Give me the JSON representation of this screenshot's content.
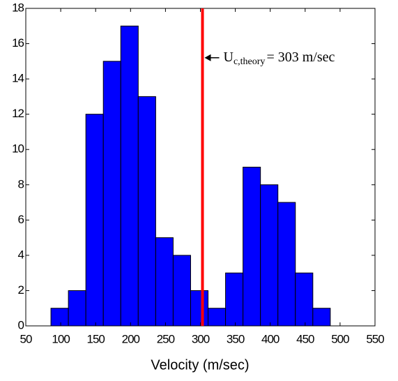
{
  "chart_data": {
    "type": "histogram",
    "bins": [
      86,
      111,
      136,
      161,
      186,
      211,
      236,
      261,
      286,
      311,
      336,
      361,
      386,
      411,
      436,
      461,
      486
    ],
    "counts": [
      1,
      2,
      12,
      15,
      17,
      13,
      5,
      4,
      2,
      1,
      3,
      9,
      8,
      7,
      3,
      1
    ],
    "color": "#0000ff",
    "xlabel": "Velocity (m/sec)",
    "xlim": [
      50,
      550
    ],
    "xticks": [
      50,
      100,
      150,
      200,
      250,
      300,
      350,
      400,
      450,
      500,
      550
    ],
    "ylim": [
      0,
      18
    ],
    "yticks": [
      0,
      2,
      4,
      6,
      8,
      10,
      12,
      14,
      16,
      18
    ],
    "vline": {
      "x": 303,
      "color": "#ff0000"
    },
    "annotation": {
      "symbol": "U",
      "subscript": "c,theory",
      "text": "= 303 m/sec",
      "y": 15.2
    }
  }
}
